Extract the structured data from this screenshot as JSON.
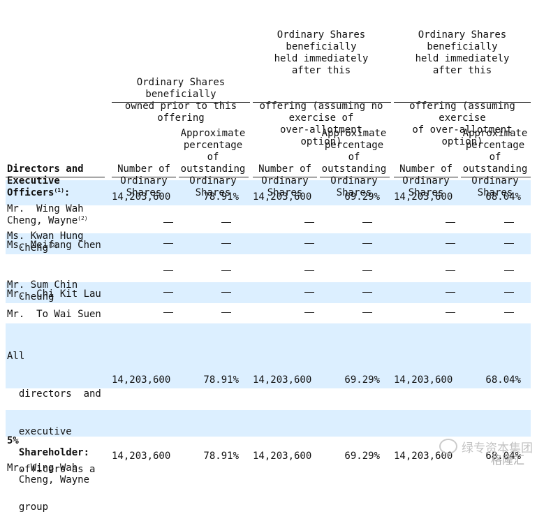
{
  "header": {
    "group1": [
      "Ordinary Shares",
      "beneficially",
      "owned prior to this",
      "offering"
    ],
    "group2": [
      "Ordinary Shares",
      "beneficially",
      "held immediately",
      "after this",
      "offering (assuming no",
      "exercise of",
      "over-allotment",
      "option)"
    ],
    "group3": [
      "Ordinary Shares",
      "beneficially",
      "held immediately",
      "after this",
      "offering (assuming",
      "exercise",
      "of over-allotment",
      "option)"
    ],
    "sub_number": [
      "Number of",
      "Ordinary",
      "Shares"
    ],
    "sub_pct": [
      "Approximate",
      "percentage",
      "of",
      "outstanding",
      "Ordinary",
      "Shares"
    ],
    "row_header": [
      "Directors and",
      "Executive",
      "Officers"
    ],
    "row_header_note": "(1)",
    "row_header_colon": ":"
  },
  "rows": [
    {
      "name": [
        "Mr.  Wing Wah",
        "Cheng, Wayne"
      ],
      "note": "(2)",
      "n1": "14,203,600",
      "p1": "78.91%",
      "n2": "14,203,600",
      "p2": "69.29%",
      "n3": "14,203,600",
      "p3": "68.04%"
    },
    {
      "name": [
        "Ms. Kwan Hung",
        "Cheng"
      ],
      "note": "(2)"
    },
    {
      "name": [
        "Ms. Meifang Chen"
      ]
    },
    {
      "name": [
        "Mr. Sum Chin",
        "Cheung"
      ]
    },
    {
      "name": [
        "Mr.  Chi Kit Lau"
      ]
    },
    {
      "name": [
        "Mr.  To Wai Suen"
      ]
    },
    {
      "name": [
        "All",
        "directors  and",
        "executive",
        "officers as a",
        "group"
      ],
      "n1": "14,203,600",
      "p1": "78.91%",
      "n2": "14,203,600",
      "p2": "69.29%",
      "n3": "14,203,600",
      "p3": "68.04%"
    },
    {
      "name": [
        "Mr. Wing Wah",
        "Cheng, Wayne"
      ],
      "n1": "14,203,600",
      "p1": "78.91%",
      "n2": "14,203,600",
      "p2": "69.29%",
      "n3": "14,203,600",
      "p3": "68.04%"
    }
  ],
  "section": [
    "5%",
    "Shareholder:"
  ],
  "empty_mark": "—",
  "watermark": {
    "line1": "绿专资本集团",
    "line2": "格隆汇"
  }
}
